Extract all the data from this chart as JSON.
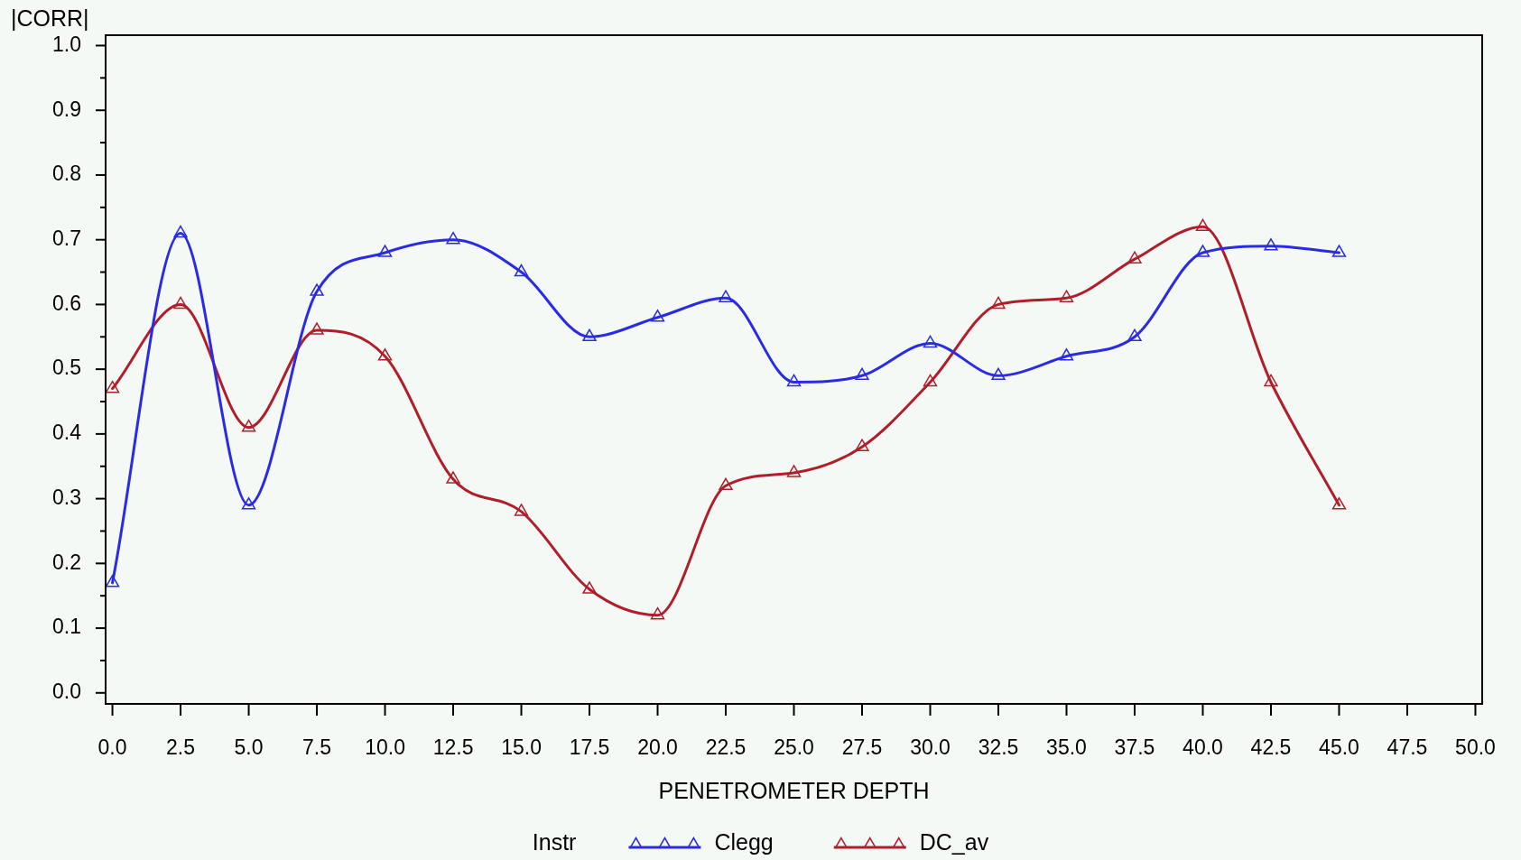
{
  "chart_data": {
    "type": "line",
    "xlabel": "PENETROMETER DEPTH",
    "ylabel": "|CORR|",
    "legend_title": "Instr",
    "legend": "bottom",
    "marker": "triangle",
    "x": [
      0,
      2.5,
      5,
      7.5,
      10,
      12.5,
      15,
      17.5,
      20,
      22.5,
      25,
      27.5,
      30,
      32.5,
      35,
      37.5,
      40,
      42.5,
      45
    ],
    "xlim": [
      -0.25,
      50.25
    ],
    "xticks": [
      {
        "value": 0,
        "label": "0.0"
      },
      2.5,
      {
        "value": 5,
        "label": "5.0"
      },
      7.5,
      {
        "value": 10,
        "label": "10.0"
      },
      12.5,
      {
        "value": 15,
        "label": "15.0"
      },
      17.5,
      {
        "value": 20,
        "label": "20.0"
      },
      22.5,
      {
        "value": 25,
        "label": "25.0"
      },
      27.5,
      {
        "value": 30,
        "label": "30.0"
      },
      32.5,
      {
        "value": 35,
        "label": "35.0"
      },
      37.5,
      {
        "value": 40,
        "label": "40.0"
      },
      42.5,
      {
        "value": 45,
        "label": "45.0"
      },
      47.5,
      {
        "value": 50,
        "label": "50.0"
      }
    ],
    "ylim": [
      -0.017,
      1.016
    ],
    "yticks": [
      {
        "value": 0,
        "label": "0.0"
      },
      {
        "value": 0.05,
        "label": null
      },
      0.1,
      {
        "value": 0.15,
        "label": null
      },
      0.2,
      {
        "value": 0.25,
        "label": null
      },
      0.3,
      {
        "value": 0.35,
        "label": null
      },
      0.4,
      {
        "value": 0.45,
        "label": null
      },
      0.5,
      {
        "value": 0.55,
        "label": null
      },
      0.6,
      {
        "value": 0.65,
        "label": null
      },
      0.7,
      {
        "value": 0.75,
        "label": null
      },
      0.8,
      {
        "value": 0.85,
        "label": null
      },
      0.9,
      {
        "value": 0.95,
        "label": null
      },
      {
        "value": 1,
        "label": "1.0"
      }
    ],
    "series": [
      {
        "name": "Clegg",
        "color": "#2b2be3",
        "values": [
          0.17,
          0.71,
          0.29,
          0.62,
          0.68,
          0.7,
          0.65,
          0.55,
          0.58,
          0.61,
          0.48,
          0.49,
          0.54,
          0.49,
          0.52,
          0.55,
          0.68,
          0.69,
          0.68
        ]
      },
      {
        "name": "DC_av",
        "color": "#b01e2c",
        "values": [
          0.47,
          0.6,
          0.41,
          0.56,
          0.52,
          0.33,
          0.28,
          0.16,
          0.12,
          0.32,
          0.34,
          0.38,
          0.48,
          0.6,
          0.61,
          0.67,
          0.72,
          0.48,
          0.29
        ]
      }
    ]
  }
}
